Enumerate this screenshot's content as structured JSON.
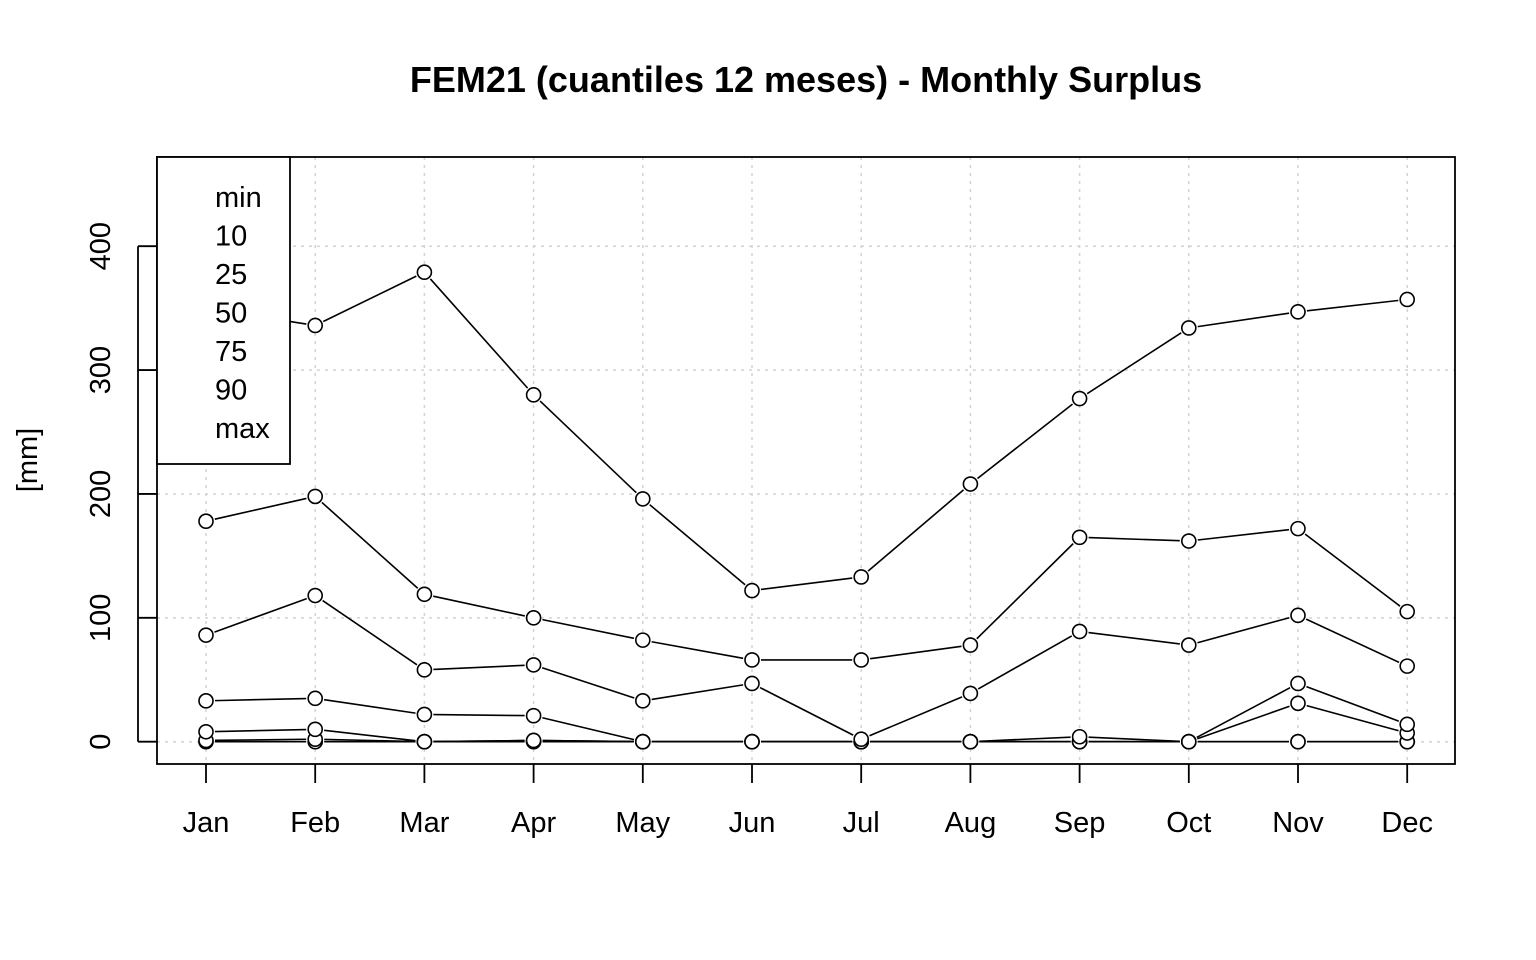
{
  "chart_data": {
    "type": "line",
    "title": "FEM21 (cuantiles 12 meses) - Monthly Surplus",
    "xlabel": "",
    "ylabel": "[mm]",
    "categories": [
      "Jan",
      "Feb",
      "Mar",
      "Apr",
      "May",
      "Jun",
      "Jul",
      "Aug",
      "Sep",
      "Oct",
      "Nov",
      "Dec"
    ],
    "yticks": [
      "0",
      "100",
      "200",
      "300",
      "400"
    ],
    "ylim": [
      -18,
      472
    ],
    "grid": true,
    "legend_position": "top-left",
    "series": [
      {
        "name": "min",
        "values": [
          0,
          0,
          0,
          0,
          0,
          0,
          0,
          0,
          0,
          0,
          0,
          0
        ]
      },
      {
        "name": "10",
        "values": [
          1,
          2,
          0,
          1,
          0,
          0,
          0,
          0,
          0,
          0,
          0,
          0
        ]
      },
      {
        "name": "25",
        "values": [
          8,
          10,
          0,
          1,
          0,
          0,
          0,
          0,
          0,
          0,
          31,
          7
        ]
      },
      {
        "name": "50",
        "values": [
          33,
          35,
          22,
          21,
          0,
          0,
          0,
          0,
          4,
          0,
          47,
          14
        ]
      },
      {
        "name": "75",
        "values": [
          86,
          118,
          58,
          62,
          33,
          47,
          2,
          39,
          89,
          78,
          102,
          61
        ]
      },
      {
        "name": "90",
        "values": [
          178,
          198,
          119,
          100,
          82,
          66,
          66,
          78,
          165,
          162,
          172,
          105
        ]
      },
      {
        "name": "max",
        "values": [
          350,
          336,
          379,
          280,
          196,
          122,
          133,
          208,
          277,
          334,
          347,
          357
        ]
      }
    ]
  }
}
